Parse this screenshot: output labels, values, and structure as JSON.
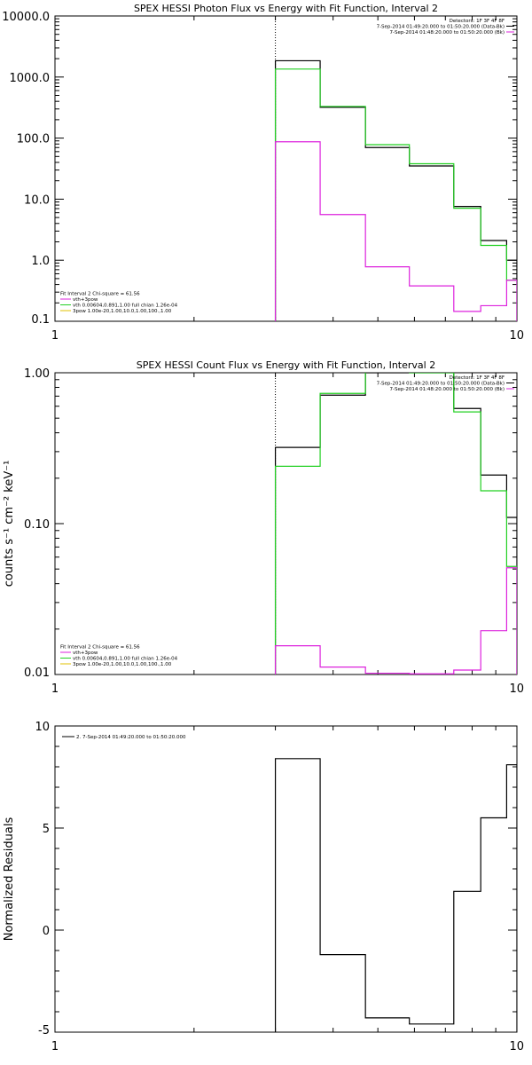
{
  "chart_data": [
    {
      "type": "line",
      "title": "SPEX HESSI Photon Flux vs Energy with Fit Function, Interval 2",
      "xscale": "log",
      "yscale": "log",
      "xlim": [
        1,
        10
      ],
      "ylim": [
        0.1,
        10000
      ],
      "xticks": [
        "1",
        "10"
      ],
      "yticks": [
        "0.1",
        "1.0",
        "10.0",
        "100.0",
        "1000.0",
        "10000.0"
      ],
      "ylabel": "",
      "vline_x": 3,
      "legend_top": {
        "position": "top-right",
        "entries": [
          "Detectors: 1F 3F 4F 8F",
          "7-Sep-2014 01:49:20.000 to 01:50:20.000 (Data-Bk)",
          "7-Sep-2014 01:48:20.000 to 01:50:20.000 (Bk)"
        ]
      },
      "legend_bottom": {
        "position": "bottom-left",
        "entries": [
          "Fit Interval 2   Chi-square = 61.56",
          "vth+3pow",
          "vth 0.00604,0.891,1.00  full chian 1.26e-04",
          "3pow 1.00e-20,1.00,10.0,1.00,100.,1.00"
        ]
      },
      "edges": [
        3,
        3.75,
        4.7,
        5.85,
        7.3,
        8.35,
        9.5,
        10
      ],
      "series": [
        {
          "name": "Data-Bk",
          "color": "#000000",
          "values": [
            1850,
            320,
            70,
            35,
            7.6,
            2.1,
            1.0
          ]
        },
        {
          "name": "vth+3pow",
          "color": "#22d022",
          "values": [
            1350,
            330,
            78,
            38,
            7.1,
            1.75,
            0.47
          ]
        },
        {
          "name": "Bk",
          "color": "#dd22dd",
          "values": [
            87,
            5.6,
            0.78,
            0.38,
            0.145,
            0.18,
            0.47
          ]
        }
      ]
    },
    {
      "type": "line",
      "title": "SPEX HESSI Count Flux vs Energy with Fit Function, Interval 2",
      "xscale": "log",
      "yscale": "log",
      "xlim": [
        1,
        10
      ],
      "ylim": [
        0.01,
        1.0
      ],
      "xticks": [
        "1",
        "10"
      ],
      "yticks": [
        "0.01",
        "0.10",
        "1.00"
      ],
      "ylabel": "counts s⁻¹ cm⁻² keV⁻¹",
      "vline_x": 3,
      "legend_top": {
        "position": "top-right",
        "entries": [
          "Detectors: 1F 3F 4F 8F",
          "7-Sep-2014 01:49:20.000 to 01:50:20.000 (Data-Bk)",
          "7-Sep-2014 01:48:20.000 to 01:50:20.000 (Bk)"
        ]
      },
      "legend_bottom": {
        "position": "bottom-left",
        "entries": [
          "Fit Interval 2   Chi-square = 61.56",
          "vth+3pow",
          "vth 0.00604,0.891,1.00  full chian 1.26e-04",
          "3pow 1.00e-20,1.00,10.0,1.00,100.,1.00"
        ]
      },
      "edges": [
        3,
        3.75,
        4.7,
        5.85,
        7.3,
        8.35,
        9.5,
        10
      ],
      "series": [
        {
          "name": "Data-Bk",
          "color": "#000000",
          "values": [
            0.32,
            0.71,
            1.0,
            1.0,
            0.58,
            0.21,
            0.11
          ]
        },
        {
          "name": "vth+3pow",
          "color": "#22d022",
          "values": [
            0.24,
            0.73,
            1.1,
            1.0,
            0.55,
            0.165,
            0.052
          ]
        },
        {
          "name": "Bk",
          "color": "#dd22dd",
          "values": [
            0.0155,
            0.0112,
            0.0102,
            0.0101,
            0.0107,
            0.0195,
            0.051
          ]
        }
      ]
    },
    {
      "type": "line",
      "title": "",
      "xscale": "log",
      "yscale": "linear",
      "xlim": [
        1,
        10
      ],
      "ylim": [
        -5,
        10
      ],
      "xticks": [
        "1",
        "10"
      ],
      "yticks": [
        "-5",
        "0",
        "5",
        "10"
      ],
      "ylabel": "Normalized Residuals",
      "legend_top": {
        "position": "top-left",
        "entries": [
          "2.  7-Sep-2014 01:49:20.000 to 01:50:20.000"
        ]
      },
      "edges": [
        3,
        3.75,
        4.7,
        5.85,
        7.3,
        8.35,
        9.5,
        10
      ],
      "series": [
        {
          "name": "",
          "color": "#000000",
          "values": [
            8.4,
            -1.2,
            -4.3,
            -4.6,
            1.9,
            5.5,
            8.1
          ]
        }
      ]
    }
  ]
}
